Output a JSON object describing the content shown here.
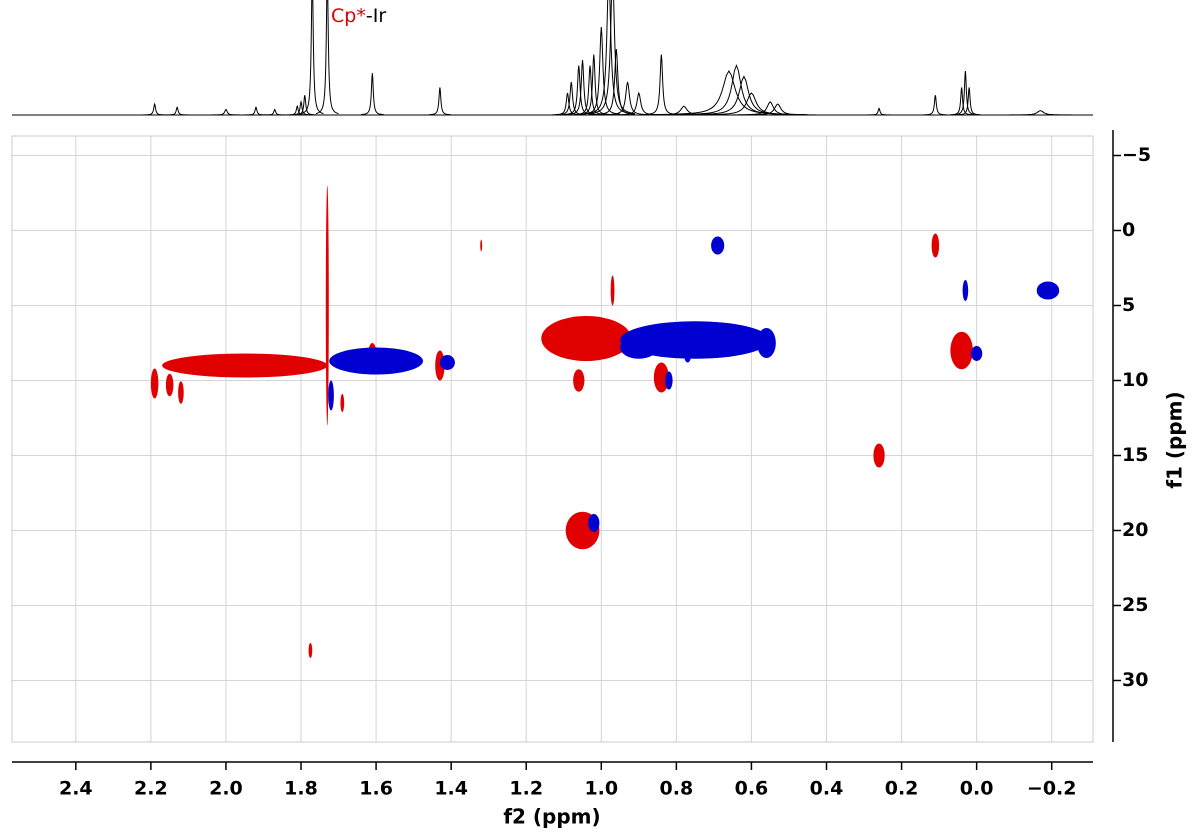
{
  "chart_data": {
    "type": "nmr2d",
    "xlabel": "f2 (ppm)",
    "ylabel": "f1 (ppm)",
    "xlim": [
      2.57,
      -0.31
    ],
    "ylim": [
      -6.3,
      34.1
    ],
    "xticks": [
      2.4,
      2.2,
      {
        "value": 2.0,
        "label": "2.0"
      },
      1.8,
      1.6,
      1.4,
      1.2,
      {
        "value": 1.0,
        "label": "1.0"
      },
      0.8,
      0.6,
      0.4,
      0.2,
      {
        "value": 0.0,
        "label": "0.0"
      },
      {
        "value": -0.2,
        "label": "−0.2"
      }
    ],
    "yticks": [
      {
        "value": -5,
        "label": "−5"
      },
      0,
      5,
      10,
      15,
      20,
      25,
      30
    ],
    "grid": true,
    "annotation": {
      "text": [
        "Cp*",
        "-Ir"
      ],
      "colors": [
        "#e00000",
        "#000000"
      ],
      "x": 1.72
    },
    "projection": {
      "color": "#000000",
      "peaks": [
        1.77,
        1.73,
        1.79,
        1.8,
        1.81,
        1.61,
        1.43,
        2.19,
        2.13,
        2.0,
        1.92,
        1.87,
        1.09,
        1.08,
        1.06,
        1.05,
        1.03,
        1.02,
        1.0,
        0.98,
        0.97,
        0.96,
        0.93,
        0.9,
        0.84,
        0.78,
        0.66,
        0.64,
        0.62,
        0.6,
        0.55,
        0.53,
        0.26,
        0.11,
        0.04,
        0.03,
        0.02,
        -0.17
      ],
      "heights": [
        130,
        130,
        18,
        12,
        8,
        38,
        25,
        10,
        7,
        5,
        7,
        5,
        20,
        30,
        45,
        50,
        45,
        55,
        80,
        130,
        130,
        60,
        30,
        20,
        55,
        8,
        40,
        45,
        35,
        20,
        12,
        10,
        6,
        18,
        25,
        40,
        25,
        4
      ],
      "widths": [
        0.003,
        0.003,
        0.003,
        0.003,
        0.003,
        0.003,
        0.003,
        0.003,
        0.003,
        0.004,
        0.003,
        0.003,
        0.004,
        0.004,
        0.004,
        0.004,
        0.004,
        0.004,
        0.005,
        0.006,
        0.006,
        0.005,
        0.006,
        0.006,
        0.004,
        0.01,
        0.02,
        0.015,
        0.015,
        0.015,
        0.01,
        0.01,
        0.003,
        0.003,
        0.003,
        0.003,
        0.003,
        0.01
      ]
    },
    "series": [
      {
        "color": "#e00000",
        "x": [
          1.95,
          2.19,
          1.73,
          1.61,
          1.43,
          1.69,
          1.32,
          1.04,
          1.06,
          0.84,
          1.05,
          0.11,
          0.04,
          0.26,
          1.775,
          0.97,
          2.15,
          2.12
        ],
        "y": [
          9.0,
          10.2,
          5.0,
          8.5,
          9.0,
          11.5,
          1.0,
          7.2,
          10.0,
          9.8,
          20.0,
          1.0,
          8.0,
          15.0,
          28.0,
          4.0,
          10.3,
          10.8
        ],
        "dx": [
          0.44,
          0.02,
          0.008,
          0.025,
          0.025,
          0.01,
          0.005,
          0.24,
          0.03,
          0.04,
          0.09,
          0.02,
          0.06,
          0.03,
          0.01,
          0.01,
          0.02,
          0.015
        ],
        "dy": [
          1.6,
          2.0,
          16.0,
          2.0,
          2.0,
          1.2,
          0.8,
          3.0,
          1.5,
          2.0,
          2.5,
          1.6,
          2.5,
          1.6,
          1.0,
          2.0,
          1.5,
          1.5
        ]
      },
      {
        "color": "#0000d0",
        "x": [
          1.6,
          1.41,
          1.72,
          0.75,
          0.56,
          0.69,
          0.03,
          -0.19,
          0.0,
          1.02,
          0.82,
          0.77,
          0.9
        ],
        "y": [
          8.7,
          8.8,
          11.0,
          7.3,
          7.5,
          1.0,
          4.0,
          4.0,
          8.2,
          19.5,
          10.0,
          8.2,
          7.8
        ],
        "dx": [
          0.25,
          0.04,
          0.015,
          0.4,
          0.05,
          0.035,
          0.015,
          0.06,
          0.03,
          0.03,
          0.02,
          0.02,
          0.1
        ],
        "dy": [
          1.8,
          1.0,
          2.0,
          2.5,
          2.0,
          1.2,
          1.4,
          1.2,
          1.0,
          1.2,
          1.2,
          1.2,
          1.5
        ]
      }
    ]
  }
}
